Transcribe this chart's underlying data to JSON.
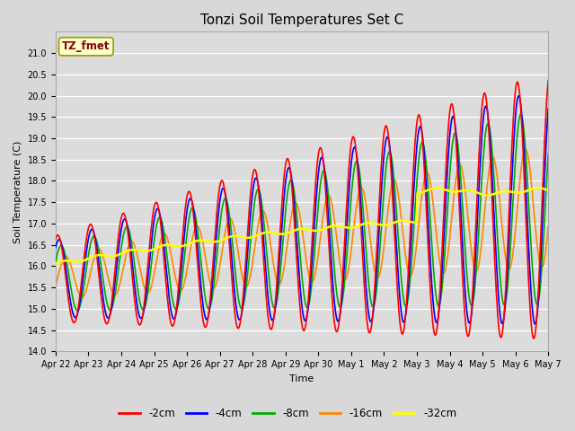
{
  "title": "Tonzi Soil Temperatures Set C",
  "xlabel": "Time",
  "ylabel": "Soil Temperature (C)",
  "ylim": [
    14.0,
    21.5
  ],
  "yticks": [
    14.0,
    14.5,
    15.0,
    15.5,
    16.0,
    16.5,
    17.0,
    17.5,
    18.0,
    18.5,
    19.0,
    19.5,
    20.0,
    20.5,
    21.0
  ],
  "xtick_labels": [
    "Apr 22",
    "Apr 23",
    "Apr 24",
    "Apr 25",
    "Apr 26",
    "Apr 27",
    "Apr 28",
    "Apr 29",
    "Apr 30",
    "May 1",
    "May 2",
    "May 3",
    "May 4",
    "May 5",
    "May 6",
    "May 7"
  ],
  "legend_label": "TZ_fmet",
  "colors": {
    "-2cm": "#ff0000",
    "-4cm": "#0000ff",
    "-8cm": "#00aa00",
    "-16cm": "#ff8800",
    "-32cm": "#ffff00"
  },
  "bg_color": "#d8d8d8",
  "plot_bg_color": "#dcdcdc",
  "grid_color": "#ffffff",
  "title_fontsize": 11,
  "tick_fontsize": 7,
  "n_points": 720
}
